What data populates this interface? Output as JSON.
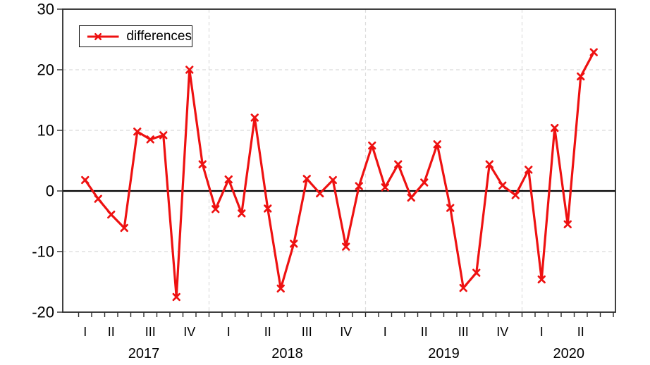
{
  "chart_data": {
    "type": "line",
    "title": "",
    "series_name": "differences",
    "series_color": "#ee1111",
    "marker": "x",
    "frequency": "monthly",
    "x_start": "2017M03",
    "x_end": "2020M06",
    "ylim": [
      -20,
      30
    ],
    "yticks": [
      30,
      20,
      10,
      0,
      -10,
      -20
    ],
    "zero_line": true,
    "legend_position": "top-left",
    "grid": {
      "horizontal_dashed_at": [
        20,
        10,
        -10
      ],
      "vertical_dashed_at_year_boundaries": true
    },
    "years": [
      {
        "label": "2017",
        "quarters": [
          {
            "label": "I",
            "months": 1
          },
          {
            "label": "II",
            "months": 3
          },
          {
            "label": "III",
            "months": 3
          },
          {
            "label": "IV",
            "months": 3
          }
        ]
      },
      {
        "label": "2018",
        "quarters": [
          {
            "label": "I",
            "months": 3
          },
          {
            "label": "II",
            "months": 3
          },
          {
            "label": "III",
            "months": 3
          },
          {
            "label": "IV",
            "months": 3
          }
        ]
      },
      {
        "label": "2019",
        "quarters": [
          {
            "label": "I",
            "months": 3
          },
          {
            "label": "II",
            "months": 3
          },
          {
            "label": "III",
            "months": 3
          },
          {
            "label": "IV",
            "months": 3
          }
        ]
      },
      {
        "label": "2020",
        "quarters": [
          {
            "label": "I",
            "months": 3
          },
          {
            "label": "II",
            "months": 3
          }
        ]
      }
    ],
    "values": [
      1.8,
      -1.3,
      -3.9,
      -6.1,
      9.8,
      8.5,
      9.2,
      -17.5,
      20.0,
      4.4,
      -3.0,
      1.9,
      -3.7,
      12.1,
      -2.9,
      -16.1,
      -8.7,
      2.0,
      -0.4,
      1.8,
      -9.2,
      0.8,
      7.5,
      0.6,
      4.4,
      -1.1,
      1.4,
      7.7,
      -2.8,
      -16.0,
      -13.5,
      4.4,
      0.9,
      -0.7,
      3.5,
      -14.6,
      10.4,
      -5.5,
      18.9,
      22.9
    ]
  },
  "legend": {
    "label": "differences"
  }
}
